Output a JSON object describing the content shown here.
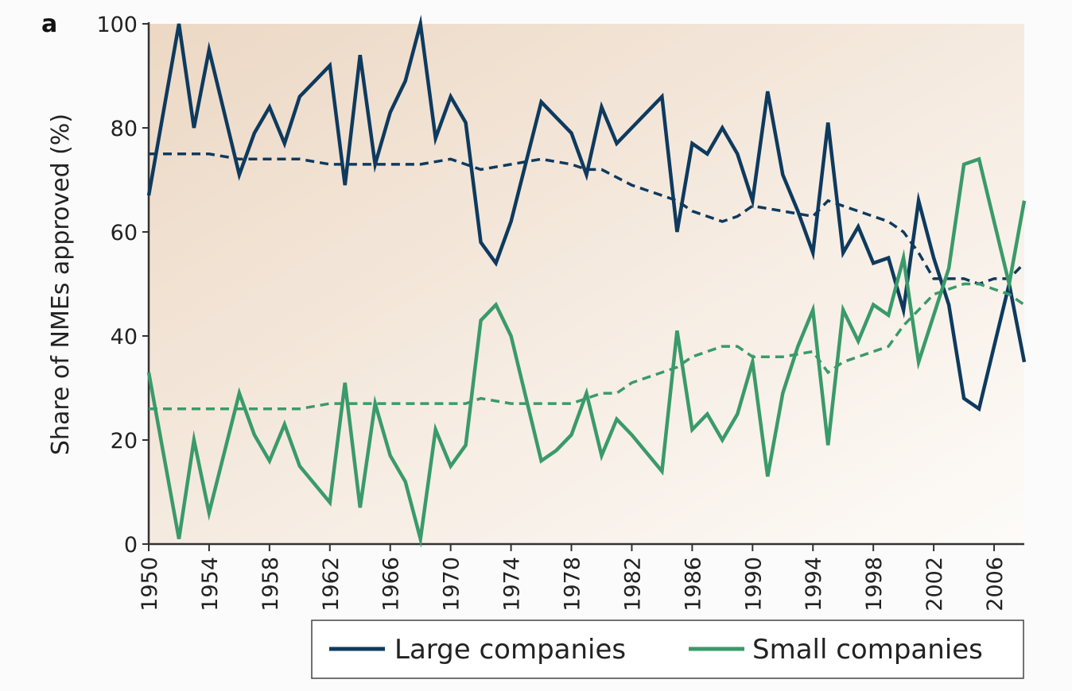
{
  "panel_label": "a",
  "colors": {
    "large": "#0e3a5e",
    "small": "#3a9a6a",
    "axis": "#333333"
  },
  "chart_data": {
    "type": "line",
    "title": "",
    "xlabel": "",
    "ylabel": "Share of NMEs approved (%)",
    "xlim": [
      1950,
      2008
    ],
    "ylim": [
      0,
      100
    ],
    "xticks": [
      "1950",
      "1954",
      "1958",
      "1962",
      "1966",
      "1970",
      "1974",
      "1978",
      "1982",
      "1986",
      "1990",
      "1994",
      "1998",
      "2002",
      "2006"
    ],
    "yticks": [
      "0",
      "20",
      "40",
      "60",
      "80",
      "100"
    ],
    "grid": false,
    "legend_position": "bottom-right",
    "series": [
      {
        "name": "Large companies",
        "style": "solid",
        "x": [
          1950,
          1952,
          1953,
          1954,
          1956,
          1957,
          1958,
          1959,
          1960,
          1962,
          1963,
          1964,
          1965,
          1966,
          1967,
          1968,
          1969,
          1970,
          1971,
          1972,
          1973,
          1974,
          1976,
          1977,
          1978,
          1979,
          1980,
          1981,
          1982,
          1984,
          1985,
          1986,
          1987,
          1988,
          1989,
          1990,
          1991,
          1992,
          1993,
          1994,
          1995,
          1996,
          1997,
          1998,
          1999,
          2000,
          2001,
          2002,
          2003,
          2004,
          2005,
          2006,
          2007,
          2008
        ],
        "y": [
          67,
          100,
          80,
          95,
          71,
          79,
          84,
          77,
          86,
          92,
          69,
          94,
          73,
          83,
          89,
          100,
          78,
          86,
          81,
          58,
          54,
          62,
          85,
          82,
          79,
          71,
          84,
          77,
          80,
          86,
          60,
          77,
          75,
          80,
          75,
          66,
          87,
          71,
          64,
          56,
          81,
          56,
          61,
          54,
          55,
          45,
          66,
          55,
          46,
          28,
          26,
          38,
          50,
          35
        ]
      },
      {
        "name": "Large companies trend",
        "style": "dashed",
        "x": [
          1950,
          1952,
          1954,
          1956,
          1958,
          1960,
          1962,
          1964,
          1966,
          1968,
          1970,
          1971,
          1972,
          1974,
          1976,
          1978,
          1979,
          1980,
          1982,
          1983,
          1984,
          1985,
          1986,
          1987,
          1988,
          1989,
          1990,
          1992,
          1994,
          1995,
          1996,
          1998,
          1999,
          2000,
          2001,
          2002,
          2004,
          2005,
          2006,
          2007,
          2008
        ],
        "y": [
          75,
          75,
          75,
          74,
          74,
          74,
          73,
          73,
          73,
          73,
          74,
          73,
          72,
          73,
          74,
          73,
          72,
          72,
          69,
          68,
          67,
          66,
          64,
          63,
          62,
          63,
          65,
          64,
          63,
          66,
          65,
          63,
          62,
          60,
          56,
          51,
          51,
          50,
          51,
          51,
          54
        ]
      },
      {
        "name": "Small companies",
        "style": "solid",
        "x": [
          1950,
          1952,
          1953,
          1954,
          1956,
          1957,
          1958,
          1959,
          1960,
          1962,
          1963,
          1964,
          1965,
          1966,
          1967,
          1968,
          1969,
          1970,
          1971,
          1972,
          1973,
          1974,
          1976,
          1977,
          1978,
          1979,
          1980,
          1981,
          1982,
          1984,
          1985,
          1986,
          1987,
          1988,
          1989,
          1990,
          1991,
          1992,
          1993,
          1994,
          1995,
          1996,
          1997,
          1998,
          1999,
          2000,
          2001,
          2002,
          2003,
          2004,
          2005,
          2006,
          2007,
          2008
        ],
        "y": [
          33,
          1,
          20,
          6,
          29,
          21,
          16,
          23,
          15,
          8,
          31,
          7,
          27,
          17,
          12,
          1,
          22,
          15,
          19,
          43,
          46,
          40,
          16,
          18,
          21,
          29,
          17,
          24,
          21,
          14,
          41,
          22,
          25,
          20,
          25,
          35,
          13,
          29,
          38,
          45,
          19,
          45,
          39,
          46,
          44,
          55,
          35,
          44,
          53,
          73,
          74,
          62,
          50,
          66
        ]
      },
      {
        "name": "Small companies trend",
        "style": "dashed",
        "x": [
          1950,
          1952,
          1954,
          1956,
          1958,
          1960,
          1962,
          1964,
          1966,
          1968,
          1970,
          1971,
          1972,
          1974,
          1976,
          1978,
          1980,
          1981,
          1982,
          1983,
          1984,
          1985,
          1986,
          1987,
          1988,
          1989,
          1990,
          1992,
          1994,
          1995,
          1996,
          1998,
          1999,
          2000,
          2001,
          2002,
          2004,
          2005,
          2006,
          2007,
          2008
        ],
        "y": [
          26,
          26,
          26,
          26,
          26,
          26,
          27,
          27,
          27,
          27,
          27,
          27,
          28,
          27,
          27,
          27,
          29,
          29,
          31,
          32,
          33,
          34,
          36,
          37,
          38,
          38,
          36,
          36,
          37,
          33,
          35,
          37,
          38,
          42,
          45,
          48,
          50,
          50,
          49,
          48,
          46
        ]
      }
    ]
  }
}
